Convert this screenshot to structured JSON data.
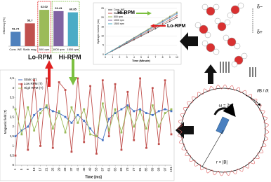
{
  "chart_data": [
    {
      "type": "bar",
      "ylabel": "efficiency [%]",
      "categories": [
        "Conv. WE",
        "Static mag.",
        "500 rpm",
        "1000 rpm",
        "1500 rpm"
      ],
      "values": [
        51.74,
        55.7,
        62.02,
        61.41,
        60.85
      ],
      "colors": [
        "#4f81bd",
        "#c0504d",
        "#9bbb59",
        "#8064a2",
        "#4bacc6"
      ],
      "ylim": [
        45,
        64
      ],
      "annotations": [
        "Lo-RPM",
        "Hi-RPM"
      ]
    },
    {
      "type": "line",
      "xlabel": "Time (Minute)",
      "ylabel": "Hydrogen volume (mL)",
      "x": [
        0,
        1,
        2,
        3,
        4,
        5,
        6,
        7,
        8,
        9,
        10
      ],
      "xlim": [
        0,
        10
      ],
      "xticks": [
        0,
        1,
        2,
        3,
        4,
        5,
        6,
        7,
        8,
        9,
        10
      ],
      "ylim": [
        0,
        25
      ],
      "yticks": [
        0,
        5,
        10,
        15,
        20,
        25
      ],
      "grid": true,
      "series": [
        {
          "name": "Conv. WE",
          "color": "#404040",
          "values": [
            0,
            2,
            4,
            6,
            8,
            10,
            12,
            14,
            16,
            18,
            20
          ]
        },
        {
          "name": "Static Mag.",
          "color": "#c0504d",
          "values": [
            0,
            2.1,
            4.2,
            6.3,
            8.4,
            10.5,
            12.6,
            14.7,
            16.8,
            18.9,
            21
          ]
        },
        {
          "name": "500 rpm",
          "color": "#9bbb59",
          "values": [
            0,
            2.3,
            4.6,
            6.9,
            9.2,
            11.5,
            13.8,
            16.1,
            18.4,
            20.7,
            23
          ]
        },
        {
          "name": "1000 rpm",
          "color": "#8064a2",
          "values": [
            0,
            2.25,
            4.5,
            6.75,
            9,
            11.25,
            13.5,
            15.75,
            18,
            20.25,
            22.5
          ]
        },
        {
          "name": "1500 rpm",
          "color": "#4bacc6",
          "values": [
            0,
            2.2,
            4.4,
            6.6,
            8.8,
            11,
            13.2,
            15.4,
            17.6,
            19.8,
            22
          ]
        }
      ],
      "annotations": [
        "Hi-RPM",
        "Lo-RPM"
      ]
    },
    {
      "type": "line",
      "xlabel": "Time [ms]",
      "ylabel": "Magnetic field (T)",
      "x": [
        1,
        5,
        9,
        13,
        17,
        21,
        25,
        29,
        33,
        37,
        41,
        45,
        49,
        53,
        57,
        61,
        65,
        69,
        73,
        77,
        81,
        85,
        89,
        93,
        97,
        101
      ],
      "xlim": [
        1,
        101
      ],
      "xticks": [
        1,
        5,
        9,
        13,
        17,
        21,
        25,
        29,
        33,
        37,
        41,
        45,
        49,
        53,
        57,
        61,
        65,
        69,
        73,
        77,
        81,
        85,
        89,
        93,
        97,
        101
      ],
      "ylim": [
        0,
        4.5
      ],
      "yticks": [
        0,
        {
          "value": 0.5,
          "label": "0,5"
        },
        1,
        {
          "value": 1.5,
          "label": "1,5"
        },
        2,
        {
          "value": 2.5,
          "label": "2,5"
        },
        3,
        {
          "value": 3.5,
          "label": "3,5"
        },
        4,
        {
          "value": 4.5,
          "label": "4,5"
        }
      ],
      "grid": false,
      "series": [
        {
          "name": "Static (T)",
          "color": "#4472c4",
          "values": [
            1.5,
            1.8,
            2.0,
            2.6,
            2.9,
            3.0,
            2.8,
            2.7,
            2.5,
            2.2,
            2.6,
            2.3,
            1.9,
            1.5,
            1.3,
            2.4,
            2.7,
            2.9,
            3.1,
            2.8,
            2.9,
            2.7,
            2.6,
            2.8,
            2.9,
            2.8
          ]
        },
        {
          "name": "Low RPM (T)",
          "color": "#c0504d",
          "values": [
            0.5,
            4.2,
            0.8,
            4.4,
            1.0,
            4.5,
            0.9,
            4.3,
            3.9,
            0.7,
            4.5,
            1.2,
            4.1,
            0.6,
            4.4,
            1.5,
            4.2,
            0.8,
            3.8,
            1.3,
            4.5,
            0.9,
            4.0,
            1.1,
            4.4,
            1.6
          ]
        },
        {
          "name": "High RPM (T)",
          "color": "#9bbb59",
          "values": [
            2.9,
            1.6,
            3.0,
            1.8,
            2.7,
            3.1,
            1.9,
            2.8,
            1.7,
            3.0,
            2.2,
            2.9,
            1.6,
            1.5,
            3.2,
            1.8,
            2.9,
            1.7,
            3.0,
            2.0,
            2.8,
            1.9,
            3.1,
            2.0,
            2.7,
            2.9
          ]
        }
      ]
    }
  ],
  "diagram": {
    "omega": "ω = 2πf",
    "radius": "r = |B|",
    "dbdt": "∂B / ∂t",
    "delta_minus": "δ−",
    "delta_plus": "δ+"
  }
}
